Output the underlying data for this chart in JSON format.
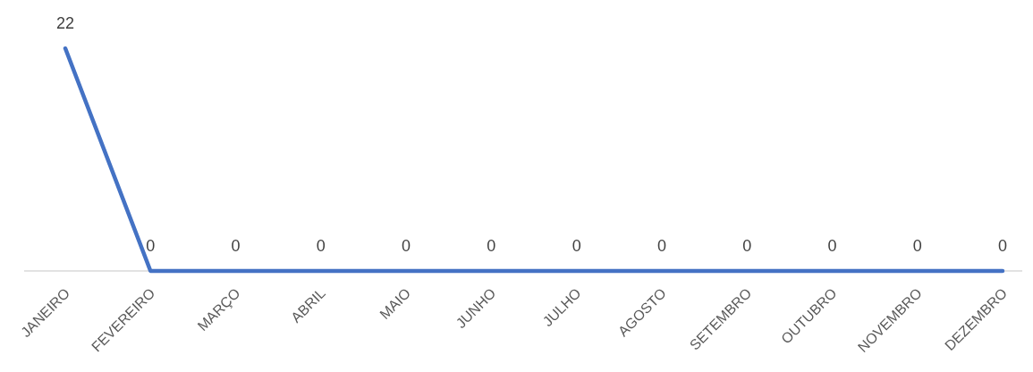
{
  "chart_data": {
    "type": "line",
    "categories": [
      "JANEIRO",
      "FEVEREIRO",
      "MARÇO",
      "ABRIL",
      "MAIO",
      "JUNHO",
      "JULHO",
      "AGOSTO",
      "SETEMBRO",
      "OUTUBRO",
      "NOVEMBRO",
      "DEZEMBRO"
    ],
    "series": [
      {
        "color": "#4472c4",
        "values": [
          22,
          0,
          0,
          0,
          0,
          0,
          0,
          0,
          0,
          0,
          0,
          0
        ]
      }
    ],
    "data_labels": true,
    "marker": "none",
    "line_style": "solid"
  }
}
